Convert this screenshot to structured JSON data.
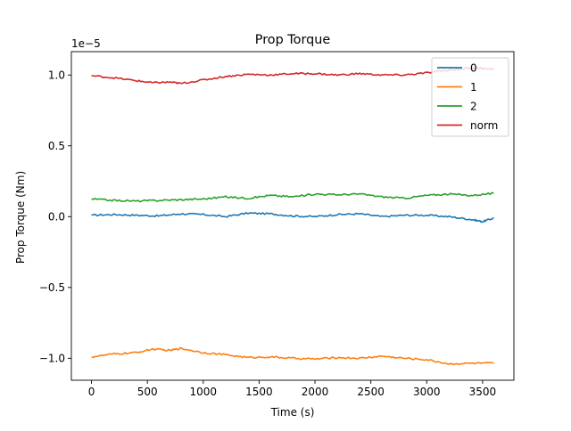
{
  "chart_data": {
    "type": "line",
    "title": "Prop Torque",
    "xlabel": "Time (s)",
    "ylabel": "Prop Torque (Nm)",
    "offset_text": "1e−5",
    "xlim": [
      -180,
      3780
    ],
    "ylim": [
      -1.155,
      1.165
    ],
    "x_ticks": [
      0,
      500,
      1000,
      1500,
      2000,
      2500,
      3000,
      3500
    ],
    "x_tick_labels": [
      "0",
      "500",
      "1000",
      "1500",
      "2000",
      "2500",
      "3000",
      "3500"
    ],
    "y_ticks": [
      -1.0,
      -0.5,
      0.0,
      0.5,
      1.0
    ],
    "y_tick_labels": [
      "−1.0",
      "−0.5",
      "0.0",
      "0.5",
      "1.0"
    ],
    "grid": false,
    "legend_position": "top-right",
    "series": [
      {
        "name": "0",
        "color": "#1f77b4",
        "x": [
          0,
          200,
          400,
          600,
          800,
          1000,
          1200,
          1400,
          1600,
          1800,
          2000,
          2200,
          2400,
          2600,
          2800,
          3000,
          3200,
          3400,
          3500,
          3600
        ],
        "y": [
          0.01,
          0.015,
          0.01,
          0.005,
          0.02,
          0.015,
          0.0,
          0.025,
          0.02,
          0.005,
          0.0,
          0.015,
          0.02,
          0.0,
          0.01,
          0.01,
          0.0,
          -0.02,
          -0.035,
          -0.01
        ]
      },
      {
        "name": "1",
        "color": "#ff7f0e",
        "x": [
          0,
          200,
          400,
          550,
          700,
          800,
          1000,
          1200,
          1400,
          1600,
          1800,
          2000,
          2200,
          2400,
          2600,
          2800,
          3000,
          3200,
          3400,
          3600
        ],
        "y": [
          -0.99,
          -0.97,
          -0.96,
          -0.935,
          -0.945,
          -0.93,
          -0.96,
          -0.975,
          -0.995,
          -0.99,
          -1.0,
          -1.005,
          -0.995,
          -1.0,
          -0.985,
          -1.0,
          -1.01,
          -1.04,
          -1.035,
          -1.035
        ]
      },
      {
        "name": "2",
        "color": "#2ca02c",
        "x": [
          0,
          200,
          400,
          600,
          800,
          1000,
          1200,
          1400,
          1600,
          1800,
          2000,
          2200,
          2400,
          2600,
          2800,
          3000,
          3200,
          3400,
          3600
        ],
        "y": [
          0.125,
          0.115,
          0.11,
          0.115,
          0.12,
          0.125,
          0.14,
          0.13,
          0.15,
          0.14,
          0.16,
          0.155,
          0.16,
          0.14,
          0.13,
          0.15,
          0.16,
          0.15,
          0.165
        ]
      },
      {
        "name": "norm",
        "color": "#d62728",
        "x": [
          0,
          200,
          400,
          550,
          700,
          800,
          1000,
          1200,
          1400,
          1600,
          1800,
          2000,
          2200,
          2400,
          2600,
          2800,
          3000,
          3200,
          3400,
          3600
        ],
        "y": [
          0.995,
          0.98,
          0.96,
          0.945,
          0.95,
          0.94,
          0.965,
          0.99,
          1.005,
          1.0,
          1.01,
          1.01,
          1.0,
          1.01,
          1.0,
          1.0,
          1.015,
          1.035,
          1.05,
          1.045
        ]
      }
    ]
  }
}
